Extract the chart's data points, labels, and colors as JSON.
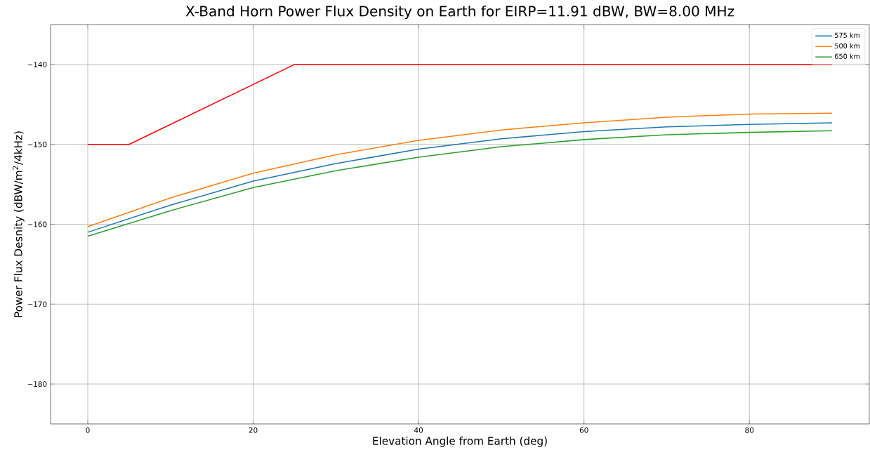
{
  "chart_data": {
    "type": "line",
    "title": "X-Band Horn Power Flux Density on Earth for EIRP=11.91 dBW, BW=8.00 MHz",
    "xlabel": "Elevation Angle from Earth (deg)",
    "ylabel": "Power Flux Desnity (dBW/m$^{2}$/4kHz)",
    "x": [
      0,
      10,
      20,
      30,
      40,
      50,
      60,
      70,
      80,
      90
    ],
    "series": [
      {
        "name": "575 km",
        "color": "#1f77b4",
        "values": [
          -161.0,
          -157.6,
          -154.6,
          -152.4,
          -150.6,
          -149.3,
          -148.4,
          -147.8,
          -147.5,
          -147.3
        ]
      },
      {
        "name": "500 km",
        "color": "#ff7f0e",
        "values": [
          -160.3,
          -156.7,
          -153.6,
          -151.3,
          -149.5,
          -148.2,
          -147.3,
          -146.6,
          -146.2,
          -146.1
        ]
      },
      {
        "name": "650 km",
        "color": "#2ca02c",
        "values": [
          -161.5,
          -158.3,
          -155.4,
          -153.3,
          -151.6,
          -150.3,
          -149.4,
          -148.8,
          -148.5,
          -148.3
        ]
      },
      {
        "color": "#ff0000",
        "x": [
          0,
          5,
          25,
          90
        ],
        "values": [
          -150,
          -150,
          -140,
          -140
        ]
      }
    ],
    "xlim": [
      -4.5,
      94.5
    ],
    "ylim": [
      -185,
      -135
    ],
    "xticks": [
      0,
      20,
      40,
      60,
      80
    ],
    "yticks": [
      {
        "value": -180,
        "label": "−180"
      },
      {
        "value": -170,
        "label": "−170"
      },
      {
        "value": -160,
        "label": "−160"
      },
      {
        "value": -150,
        "label": "−150"
      },
      {
        "value": -140,
        "label": "−140"
      }
    ],
    "grid": true,
    "legend": "top right",
    "marker": "none",
    "line_style": "solid"
  }
}
